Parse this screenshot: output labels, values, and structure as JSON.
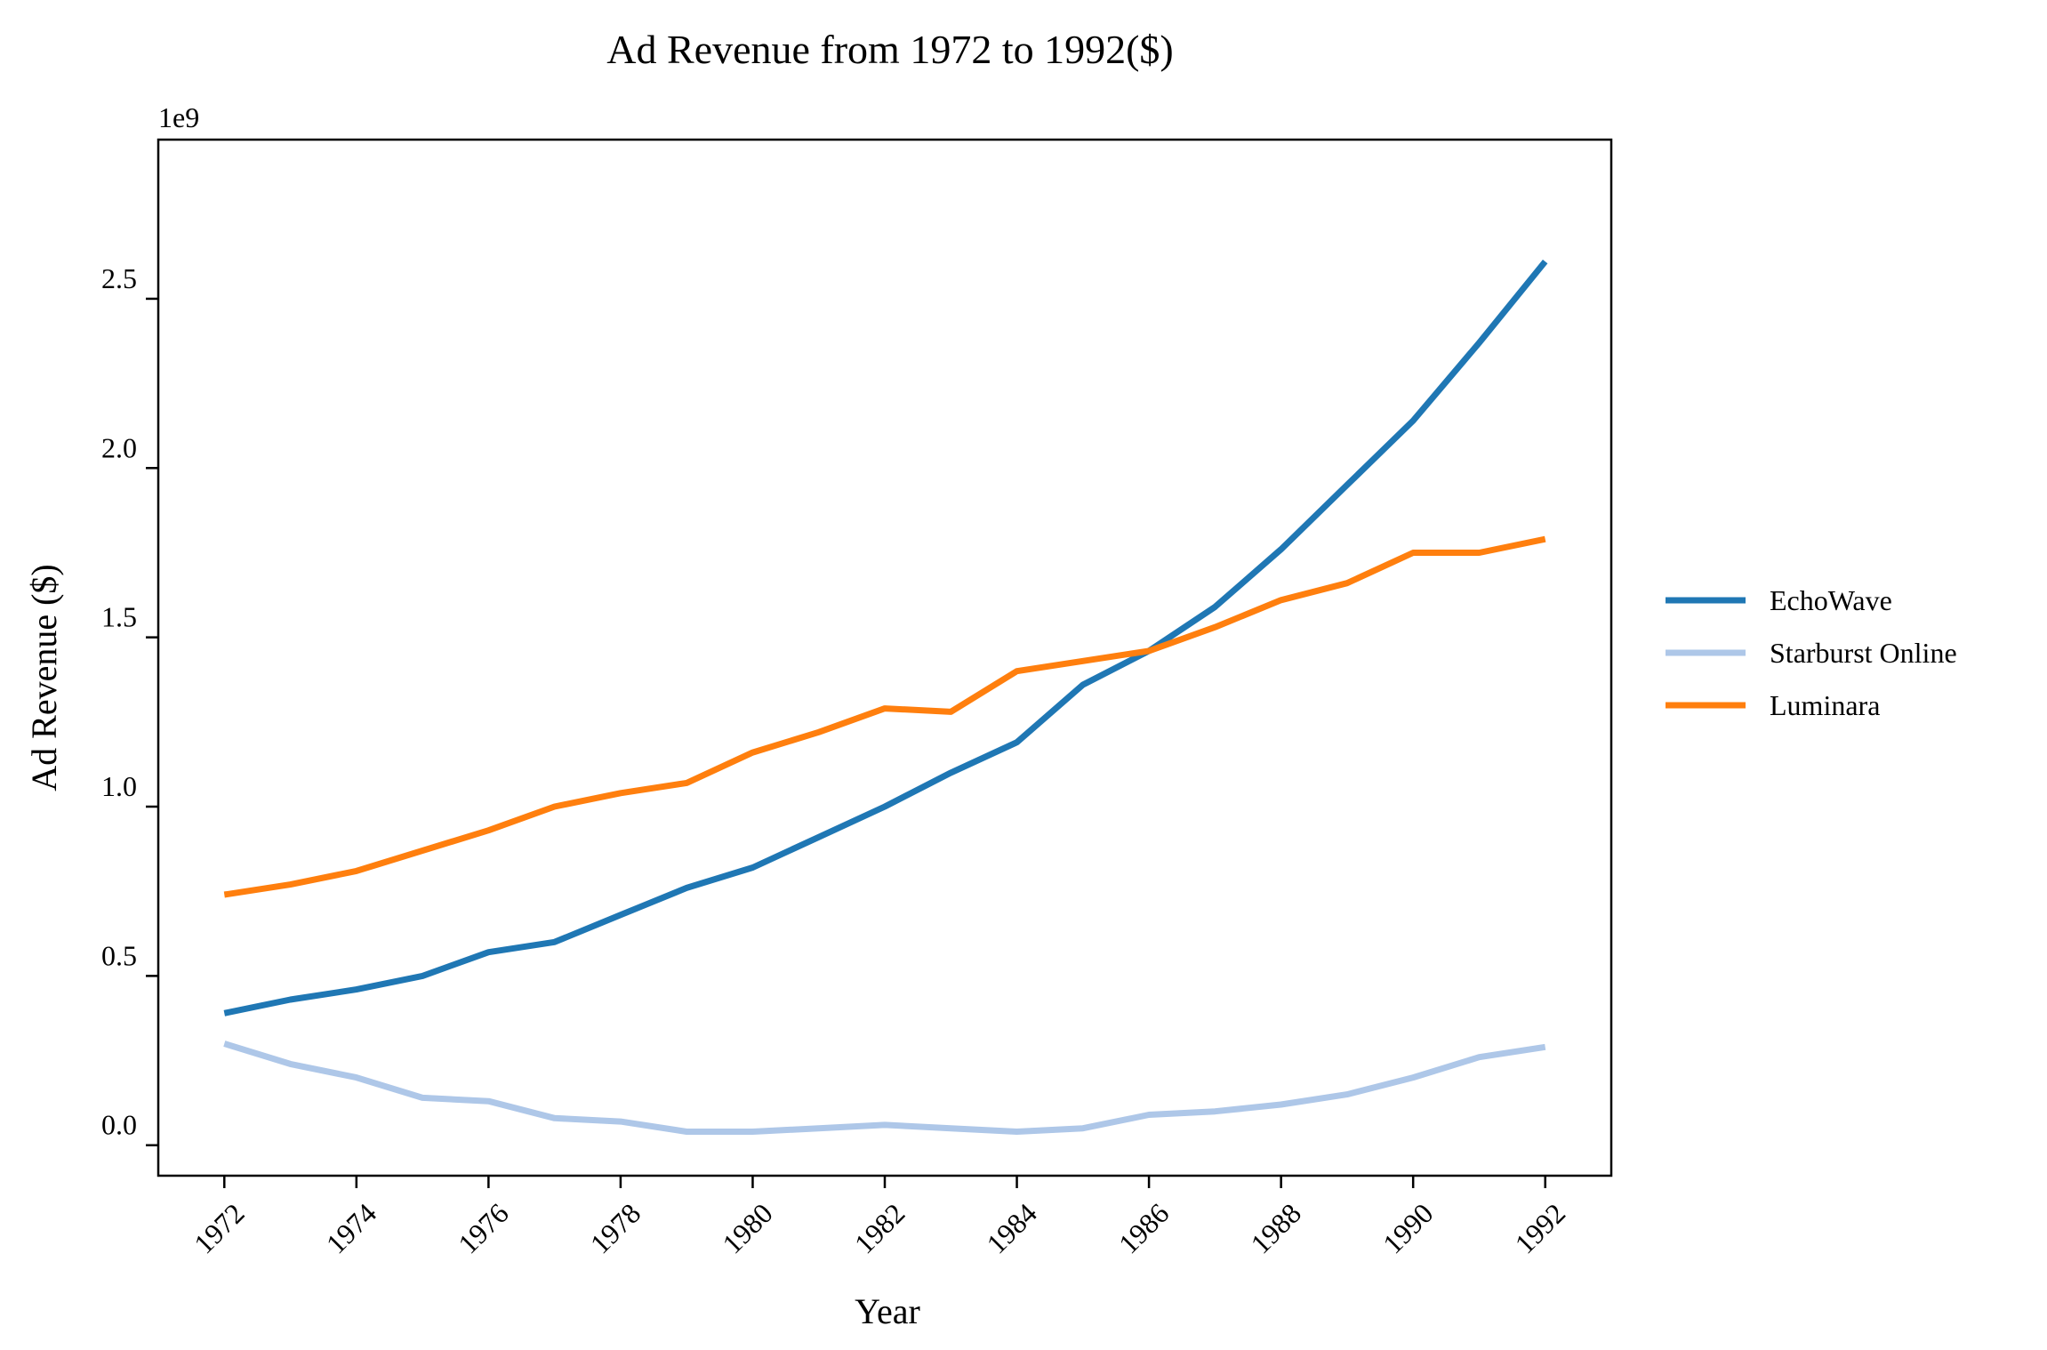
{
  "chart_data": {
    "type": "line",
    "title": "Ad Revenue from 1972 to 1992($)",
    "xlabel": "Year",
    "ylabel": "Ad Revenue ($)",
    "y_offset_label": "1e9",
    "x": [
      1972,
      1973,
      1974,
      1975,
      1976,
      1977,
      1978,
      1979,
      1980,
      1981,
      1982,
      1983,
      1984,
      1985,
      1986,
      1987,
      1988,
      1989,
      1990,
      1991,
      1992
    ],
    "x_tick_labels": [
      "1972",
      "1974",
      "1976",
      "1978",
      "1980",
      "1982",
      "1984",
      "1986",
      "1988",
      "1990",
      "1992"
    ],
    "y_tick_labels": [
      "0.0",
      "0.5",
      "1.0",
      "1.5",
      "2.0",
      "2.5"
    ],
    "xlim": [
      1971.0,
      1993.0
    ],
    "ylim": [
      -0.09,
      2.97
    ],
    "grid": false,
    "legend_position": "right",
    "series": [
      {
        "name": "EchoWave",
        "color": "#1f77b4",
        "values": [
          0.39,
          0.43,
          0.46,
          0.5,
          0.57,
          0.6,
          0.68,
          0.76,
          0.82,
          0.91,
          1.0,
          1.1,
          1.19,
          1.36,
          1.46,
          1.59,
          1.76,
          1.95,
          2.14,
          2.37,
          2.61
        ]
      },
      {
        "name": "Starburst Online",
        "color": "#aec7e8",
        "values": [
          0.3,
          0.24,
          0.2,
          0.14,
          0.13,
          0.08,
          0.07,
          0.04,
          0.04,
          0.05,
          0.06,
          0.05,
          0.04,
          0.05,
          0.09,
          0.1,
          0.12,
          0.15,
          0.2,
          0.26,
          0.29
        ]
      },
      {
        "name": "Luminara",
        "color": "#ff7f0e",
        "values": [
          0.74,
          0.77,
          0.81,
          0.87,
          0.93,
          1.0,
          1.04,
          1.07,
          1.16,
          1.22,
          1.29,
          1.28,
          1.4,
          1.43,
          1.46,
          1.53,
          1.61,
          1.66,
          1.75,
          1.75,
          1.79
        ]
      }
    ]
  }
}
